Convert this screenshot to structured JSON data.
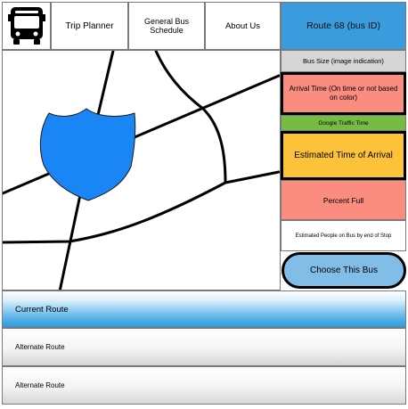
{
  "nav": {
    "logo_icon": "bus-icon",
    "trip_planner": "Trip Planner",
    "general_schedule": "General Bus Schedule",
    "about_us": "About Us"
  },
  "route_header": {
    "title": "Route 68 (bus ID)",
    "color": "#3a9cdc"
  },
  "map": {
    "shield_icon": "interstate-shield-icon",
    "shield_color": "#1a86f5"
  },
  "info_panel": {
    "bus_size": "Bus Size (image indication)",
    "arrival_time": "Arrival Time (On time or not based on color)",
    "traffic": "Google Traffic Time",
    "eta": "Estimated Time of Arrival",
    "percent_full": "Percent Full",
    "est_people": "Estimated People on Bus by end of Stop",
    "choose_button": "Choose This Bus",
    "colors": {
      "arrival": "#fa8d80",
      "traffic": "#77bb44",
      "eta": "#fcc23a",
      "percent": "#fa8d80",
      "button": "#82bde8"
    }
  },
  "routes": {
    "current": "Current Route",
    "alternates": [
      "Alternate Route",
      "Alternate Route"
    ]
  }
}
